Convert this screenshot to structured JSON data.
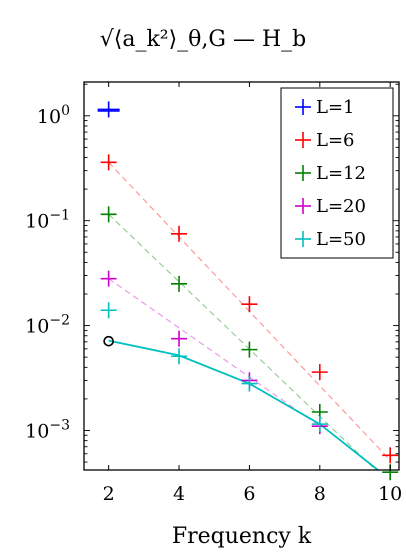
{
  "chart_data": {
    "type": "scatter",
    "title": "√⟨a_k²⟩_θ,G — H_b",
    "xlabel": "Frequency k",
    "ylabel": "",
    "xlim": [
      1.3,
      10.25
    ],
    "ylim": [
      0.00042,
      2.1
    ],
    "yscale": "log",
    "x_ticks": [
      2,
      4,
      6,
      8,
      10
    ],
    "y_ticks": [
      {
        "value": 1,
        "base": "10",
        "exp": "0"
      },
      {
        "value": 0.1,
        "base": "10",
        "exp": "−1"
      },
      {
        "value": 0.01,
        "base": "10",
        "exp": "−2"
      },
      {
        "value": 0.001,
        "base": "10",
        "exp": "−3"
      }
    ],
    "legend_position": "top-right",
    "series": [
      {
        "name": "L=1",
        "color": "#0000ff",
        "marker": "plus",
        "x": [
          2
        ],
        "y": [
          1.15
        ],
        "trend": null
      },
      {
        "name": "L=6",
        "color": "#ff0000",
        "marker": "plus",
        "x": [
          2,
          4,
          6,
          8,
          10
        ],
        "y": [
          0.36,
          0.075,
          0.016,
          0.0036,
          0.00058
        ],
        "trend": [
          [
            2,
            0.36
          ],
          [
            10,
            0.00052
          ]
        ]
      },
      {
        "name": "L=12",
        "color": "#008000",
        "marker": "plus",
        "x": [
          2,
          4,
          6,
          8,
          10
        ],
        "y": [
          0.115,
          0.025,
          0.0059,
          0.0015,
          0.0004
        ],
        "trend": [
          [
            2,
            0.115
          ],
          [
            10,
            0.00031
          ]
        ]
      },
      {
        "name": "L=20",
        "color": "#cc00cc",
        "marker": "plus",
        "x": [
          2,
          4,
          6,
          8
        ],
        "y": [
          0.028,
          0.0075,
          0.003,
          0.0011
        ],
        "trend": [
          [
            2,
            0.028
          ],
          [
            8,
            0.0011
          ]
        ]
      },
      {
        "name": "L=50",
        "color": "#00bfbf",
        "marker": "plus",
        "x": [
          2,
          4,
          6,
          8
        ],
        "y": [
          0.014,
          0.0051,
          0.0028,
          0.00115
        ],
        "trend": null
      }
    ],
    "fit_curve": {
      "color": "#00bfbf",
      "x": [
        2,
        4,
        6,
        8,
        9.65
      ],
      "y": [
        0.0072,
        0.0052,
        0.0028,
        0.00115,
        0.00042
      ]
    },
    "circle_marker": {
      "x": 2,
      "y": 0.0071
    }
  }
}
